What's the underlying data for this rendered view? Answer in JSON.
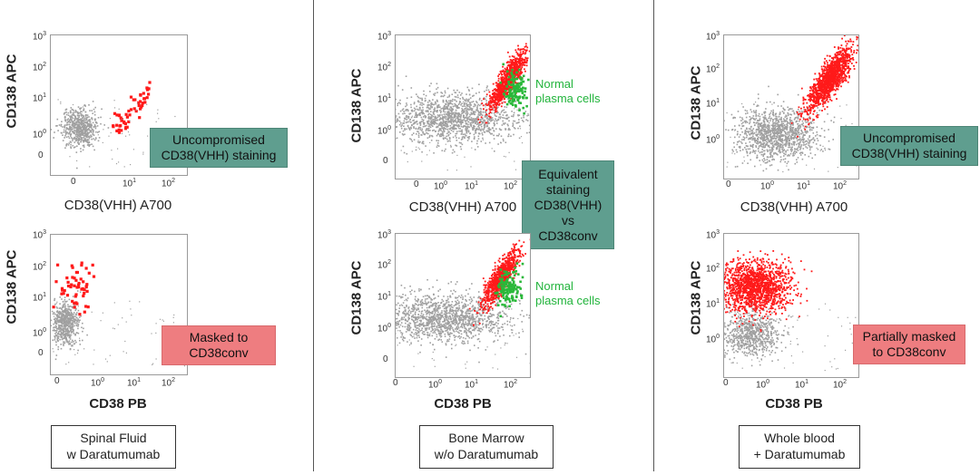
{
  "colors": {
    "population": "#a0a0a0",
    "target": "#ff1a1a",
    "normal": "#2ab83a",
    "teal_box": "#5f9e8f",
    "red_box": "#ee7d80"
  },
  "columns": [
    {
      "sample_label": [
        "Spinal Fluid",
        "w Daratumumab"
      ]
    },
    {
      "sample_label": [
        "Bone Marrow",
        "w/o Daratumumab"
      ]
    },
    {
      "sample_label": [
        "Whole blood",
        "+ Daratumumab"
      ]
    }
  ],
  "callouts": {
    "col1_top": [
      "Uncompromised",
      "CD38(VHH) staining"
    ],
    "col1_bottom": [
      "Masked to",
      "CD38conv"
    ],
    "col2_mid": [
      "Equivalent",
      "staining",
      "CD38(VHH)",
      "vs",
      "CD38conv"
    ],
    "col3_top": [
      "Uncompromised",
      "CD38(VHH) staining"
    ],
    "col3_bottom": [
      "Partially masked",
      "to CD38conv"
    ]
  },
  "green_notes": {
    "col2_top": [
      "Normal",
      "plasma cells"
    ],
    "col2_bottom": [
      "Normal",
      "plasma cells"
    ]
  },
  "chart_data": [
    {
      "type": "scatter",
      "panel": "spinal-fluid-vhh",
      "xlabel": "CD38(VHH) A700",
      "ylabel": "CD138 APC",
      "x_scale": "log",
      "y_scale": "log",
      "xticks": [
        "0",
        "10^1",
        "10^2"
      ],
      "yticks": [
        "0",
        "10^0",
        "10^1",
        "10^2",
        "10^3"
      ],
      "series": [
        {
          "color": "gray",
          "clusters": [
            {
              "x_center": -0.5,
              "y_center": 0.5,
              "count": 600
            }
          ]
        },
        {
          "color": "red",
          "clusters": [
            {
              "x_from": 0.5,
              "x_to": 1.6,
              "y_from": 0.5,
              "y_to": 1.7,
              "count": 55
            }
          ]
        }
      ]
    },
    {
      "type": "scatter",
      "panel": "spinal-fluid-conv",
      "xlabel": "CD38 PB",
      "ylabel": "CD138 APC",
      "x_scale": "log",
      "y_scale": "log",
      "xticks": [
        "0",
        "10^0",
        "10^1",
        "10^2"
      ],
      "yticks": [
        "0",
        "10^0",
        "10^1",
        "10^2",
        "10^3"
      ],
      "series": [
        {
          "color": "gray",
          "clusters": [
            {
              "x_center": -0.9,
              "y_center": 0.6,
              "count": 600
            }
          ]
        },
        {
          "color": "red",
          "clusters": [
            {
              "x_center": -0.6,
              "y_center": 1.6,
              "count": 55
            }
          ]
        }
      ]
    },
    {
      "type": "scatter",
      "panel": "bone-marrow-vhh",
      "xlabel": "CD38(VHH) A700",
      "ylabel": "CD138 APC",
      "x_scale": "log",
      "y_scale": "log",
      "xticks": [
        "0",
        "10^0",
        "10^1",
        "10^2"
      ],
      "yticks": [
        "0",
        "10^0",
        "10^1",
        "10^2",
        "10^3"
      ],
      "series": [
        {
          "color": "gray",
          "clusters": [
            {
              "x_center": 0.3,
              "y_center": 0.7,
              "count": 1400
            }
          ]
        },
        {
          "color": "red",
          "clusters": [
            {
              "x_center": 1.8,
              "y_center": 1.8,
              "count": 900
            }
          ]
        },
        {
          "name": "Normal plasma cells",
          "color": "green",
          "clusters": [
            {
              "x_center": 2.0,
              "y_center": 1.5,
              "count": 140
            }
          ]
        }
      ]
    },
    {
      "type": "scatter",
      "panel": "bone-marrow-conv",
      "xlabel": "CD38 PB",
      "ylabel": "CD138 APC",
      "x_scale": "log",
      "y_scale": "log",
      "xticks": [
        "0",
        "10^0",
        "10^1",
        "10^2"
      ],
      "yticks": [
        "0",
        "10^0",
        "10^1",
        "10^2",
        "10^3"
      ],
      "series": [
        {
          "color": "gray",
          "clusters": [
            {
              "x_center": 0.1,
              "y_center": 0.7,
              "count": 1400
            }
          ]
        },
        {
          "color": "red",
          "clusters": [
            {
              "x_center": 1.6,
              "y_center": 1.8,
              "count": 900
            }
          ]
        },
        {
          "name": "Normal plasma cells",
          "color": "green",
          "clusters": [
            {
              "x_center": 1.8,
              "y_center": 1.5,
              "count": 140
            }
          ]
        }
      ]
    },
    {
      "type": "scatter",
      "panel": "whole-blood-vhh",
      "xlabel": "CD38(VHH) A700",
      "ylabel": "CD138 APC",
      "x_scale": "log",
      "y_scale": "log",
      "xticks": [
        "0",
        "10^0",
        "10^1",
        "10^2"
      ],
      "yticks": [
        "10^0",
        "10^1",
        "10^2",
        "10^3"
      ],
      "series": [
        {
          "color": "gray",
          "clusters": [
            {
              "x_center": 0.6,
              "y_center": 0.3,
              "count": 1200
            }
          ]
        },
        {
          "color": "red",
          "clusters": [
            {
              "x_center": 1.8,
              "y_center": 1.8,
              "count": 1300
            }
          ]
        }
      ]
    },
    {
      "type": "scatter",
      "panel": "whole-blood-conv",
      "xlabel": "CD38 PB",
      "ylabel": "CD138 APC",
      "x_scale": "log",
      "y_scale": "log",
      "xticks": [
        "0",
        "10^0",
        "10^1",
        "10^2"
      ],
      "yticks": [
        "10^0",
        "10^1",
        "10^2",
        "10^3"
      ],
      "series": [
        {
          "color": "gray",
          "clusters": [
            {
              "x_center": 0.0,
              "y_center": 0.3,
              "count": 700
            }
          ]
        },
        {
          "color": "red",
          "clusters": [
            {
              "x_center": 0.1,
              "y_center": 1.6,
              "count": 1500
            }
          ]
        }
      ]
    }
  ]
}
